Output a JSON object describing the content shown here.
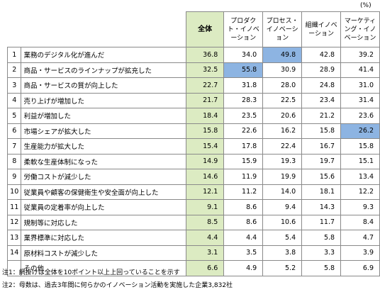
{
  "unit": "(%)",
  "columns": [
    "全体",
    "プロダクト・イノベーション",
    "プロセス・イノベーション",
    "組織イノベーション",
    "マーケティング・イノベーション"
  ],
  "rows": [
    {
      "no": "1",
      "label": "業務のデジタル化が進んだ",
      "values": [
        "36.8",
        "34.0",
        "49.8",
        "42.8",
        "39.2"
      ]
    },
    {
      "no": "2",
      "label": "商品・サービスのラインナップが拡充した",
      "values": [
        "32.5",
        "55.8",
        "30.9",
        "28.9",
        "41.4"
      ]
    },
    {
      "no": "3",
      "label": "商品・サービスの質が向上した",
      "values": [
        "22.7",
        "31.8",
        "28.0",
        "24.8",
        "31.0"
      ]
    },
    {
      "no": "4",
      "label": "売り上げが増加した",
      "values": [
        "21.7",
        "28.3",
        "22.5",
        "23.4",
        "31.4"
      ]
    },
    {
      "no": "5",
      "label": "利益が増加した",
      "values": [
        "18.4",
        "23.5",
        "20.6",
        "21.2",
        "23.6"
      ]
    },
    {
      "no": "6",
      "label": "市場シェアが拡大した",
      "values": [
        "15.8",
        "22.6",
        "16.2",
        "15.8",
        "26.2"
      ]
    },
    {
      "no": "7",
      "label": "生産能力が拡大した",
      "values": [
        "15.4",
        "17.8",
        "22.4",
        "16.7",
        "15.8"
      ]
    },
    {
      "no": "8",
      "label": "柔軟な生産体制になった",
      "values": [
        "14.9",
        "15.9",
        "19.3",
        "19.7",
        "15.1"
      ]
    },
    {
      "no": "9",
      "label": "労働コストが減少した",
      "values": [
        "14.6",
        "11.9",
        "19.9",
        "15.6",
        "13.4"
      ]
    },
    {
      "no": "10",
      "label": "従業員や顧客の保健衛生や安全面が向上した",
      "values": [
        "12.1",
        "11.2",
        "14.0",
        "18.1",
        "12.2"
      ]
    },
    {
      "no": "11",
      "label": "従業員の定着率が向上した",
      "values": [
        "9.1",
        "8.6",
        "9.4",
        "14.3",
        "9.3"
      ]
    },
    {
      "no": "12",
      "label": "規制等に対応した",
      "values": [
        "8.5",
        "8.6",
        "10.6",
        "11.7",
        "8.4"
      ]
    },
    {
      "no": "13",
      "label": "業界標準に対応した",
      "values": [
        "4.4",
        "4.4",
        "5.4",
        "5.8",
        "4.7"
      ]
    },
    {
      "no": "14",
      "label": "原材料コストが減少した",
      "values": [
        "3.1",
        "3.5",
        "3.8",
        "3.3",
        "3.9"
      ]
    },
    {
      "no": "",
      "label": "その他",
      "values": [
        "6.6",
        "4.9",
        "5.2",
        "5.8",
        "6.9"
      ]
    }
  ],
  "highlight_color": "#8db4e2",
  "total_column_color": "#dcebc2",
  "notes": [
    "注1：網掛けは全体を10ポイント以上上回っていることを示す",
    "注2：母数は、過去3年間に何らかのイノベーション活動を実施した企業3,832社"
  ]
}
